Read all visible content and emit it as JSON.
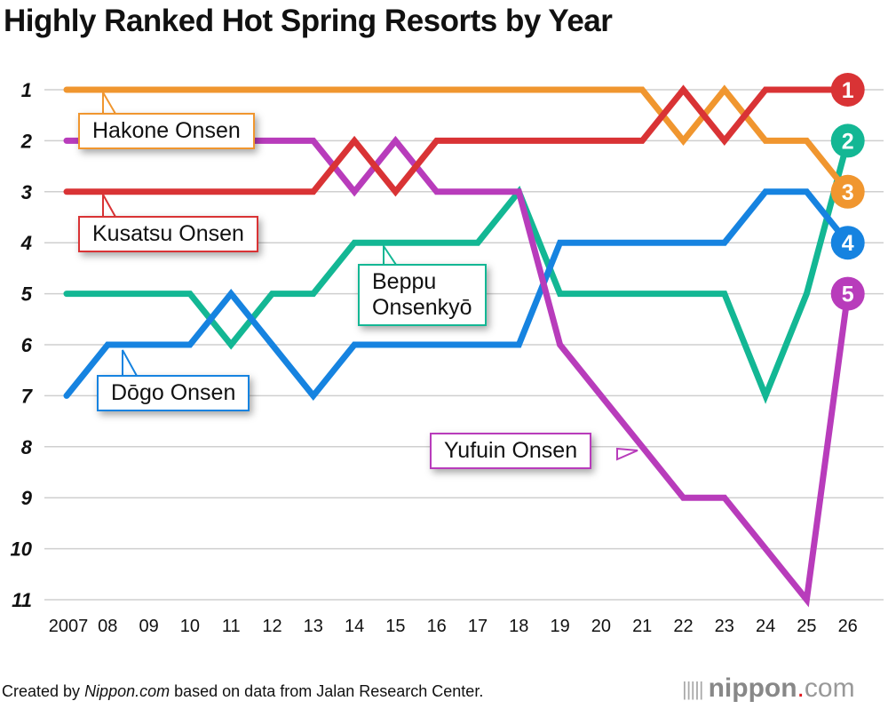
{
  "title": "Highly Ranked Hot Spring Resorts by Year",
  "footer": {
    "prefix": "Created by ",
    "source_italic": "Nippon.com",
    "suffix": " based on data from Jalan Research Center."
  },
  "logo": {
    "name": "nippon",
    "dot": ".",
    "tld": "com"
  },
  "chart_data": {
    "type": "line",
    "title": "Highly Ranked Hot Spring Resorts by Year",
    "xlabel": "",
    "ylabel": "Rank",
    "x": [
      "2007",
      "08",
      "09",
      "10",
      "11",
      "12",
      "13",
      "14",
      "15",
      "16",
      "17",
      "18",
      "19",
      "20",
      "21",
      "22",
      "23",
      "24",
      "25",
      "26"
    ],
    "y_ticks": [
      "1",
      "2",
      "3",
      "4",
      "5",
      "6",
      "7",
      "8",
      "9",
      "10",
      "11"
    ],
    "ylim": [
      11,
      1
    ],
    "y_inverted": true,
    "grid": true,
    "series": [
      {
        "name": "Hakone Onsen",
        "color": "#f0962f",
        "final_rank": "3",
        "values": [
          1,
          1,
          1,
          1,
          1,
          1,
          1,
          1,
          1,
          1,
          1,
          1,
          1,
          1,
          1,
          2,
          1,
          2,
          2,
          3
        ]
      },
      {
        "name": "Kusatsu Onsen",
        "color": "#d93335",
        "final_rank": "1",
        "values": [
          3,
          3,
          3,
          3,
          3,
          3,
          3,
          2,
          3,
          2,
          2,
          2,
          2,
          2,
          2,
          1,
          2,
          1,
          1,
          1
        ]
      },
      {
        "name": "Yufuin Onsen",
        "color": "#b83cbb",
        "final_rank": "5",
        "values": [
          2,
          2,
          2,
          2,
          2,
          2,
          2,
          3,
          2,
          3,
          3,
          3,
          6,
          7,
          8,
          9,
          9,
          10,
          11,
          5
        ]
      },
      {
        "name": "Beppu Onsenkyō",
        "color": "#13b794",
        "final_rank": "2",
        "values": [
          5,
          5,
          5,
          5,
          6,
          5,
          5,
          4,
          4,
          4,
          4,
          3,
          5,
          5,
          5,
          5,
          5,
          7,
          5,
          2
        ]
      },
      {
        "name": "Dōgo Onsen",
        "color": "#1683e0",
        "final_rank": "4",
        "values": [
          7,
          6,
          6,
          6,
          5,
          6,
          7,
          6,
          6,
          6,
          6,
          6,
          4,
          4,
          4,
          4,
          4,
          3,
          3,
          4
        ]
      }
    ],
    "annotations": [
      {
        "text": "Hakone Onsen",
        "series": "Hakone Onsen"
      },
      {
        "text": "Kusatsu Onsen",
        "series": "Kusatsu Onsen"
      },
      {
        "text": "Beppu\nOnsenkyō",
        "series": "Beppu Onsenkyō"
      },
      {
        "text": "Dōgo Onsen",
        "series": "Dōgo Onsen"
      },
      {
        "text": "Yufuin Onsen",
        "series": "Yufuin Onsen"
      }
    ],
    "source": "Created by Nippon.com based on data from Jalan Research Center."
  },
  "labels": {
    "hakone": "Hakone Onsen",
    "kusatsu": "Kusatsu Onsen",
    "beppu_line1": "Beppu",
    "beppu_line2": "Onsenkyō",
    "dogo": "Dōgo Onsen",
    "yufuin": "Yufuin Onsen"
  }
}
